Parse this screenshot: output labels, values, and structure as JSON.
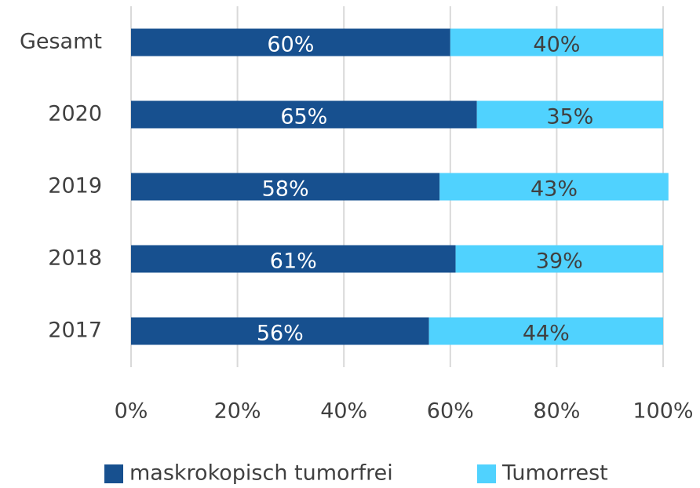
{
  "chart_data": {
    "type": "stacked-barh",
    "categories": [
      "Gesamt",
      "2020",
      "2019",
      "2018",
      "2017"
    ],
    "series": [
      {
        "name": "maskrokopisch tumorfrei",
        "color": "#17508f",
        "label_color": "#ffffff",
        "values": [
          60,
          65,
          58,
          61,
          56
        ],
        "value_labels": [
          "60%",
          "65%",
          "58%",
          "61%",
          "56%"
        ]
      },
      {
        "name": "Tumorrest",
        "color": "#50d2fe",
        "label_color": "#404040",
        "values": [
          40,
          35,
          43,
          39,
          44
        ],
        "value_labels": [
          "40%",
          "35%",
          "43%",
          "39%",
          "44%"
        ]
      }
    ],
    "xlim": [
      0,
      100
    ],
    "xticks": [
      {
        "value": 0,
        "label": "0%"
      },
      {
        "value": 20,
        "label": "20%"
      },
      {
        "value": 40,
        "label": "40%"
      },
      {
        "value": 60,
        "label": "60%"
      },
      {
        "value": 80,
        "label": "80%"
      },
      {
        "value": 100,
        "label": "100%"
      }
    ],
    "grid": true,
    "legend": "bottom"
  }
}
